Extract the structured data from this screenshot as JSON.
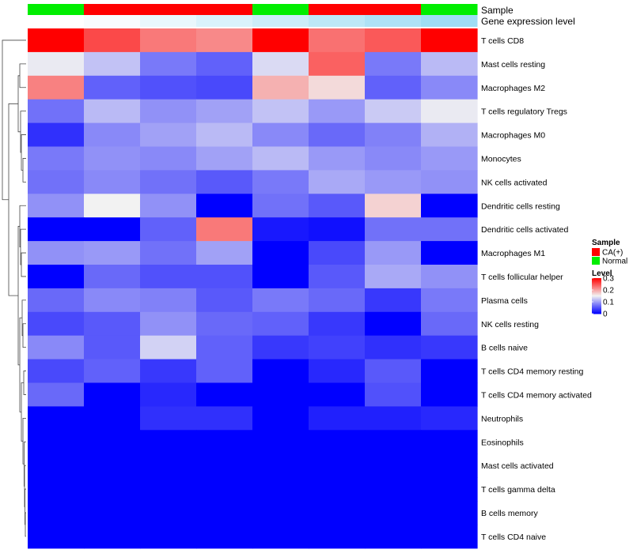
{
  "chart_data": {
    "type": "heatmap",
    "title": "",
    "annotation_tracks": [
      "Sample",
      "Gene expression level"
    ],
    "rows": [
      "T cells CD8",
      "Mast cells resting",
      "Macrophages M2",
      "T cells regulatory  Tregs",
      "Macrophages M0",
      "Monocytes",
      "NK cells activated",
      "Dendritic cells resting",
      "Dendritic cells activated",
      "Macrophages M1",
      "T cells follicular helper",
      "Plasma cells",
      "NK cells resting",
      "B cells naive",
      "T cells CD4 memory resting",
      "T cells CD4 memory activated",
      "Neutrophils",
      "Eosinophils",
      "Mast cells activated",
      "T cells gamma delta",
      "B cells memory",
      "T cells CD4 naive"
    ],
    "sample_groups": [
      "Normal",
      "CA(+)",
      "CA(+)",
      "CA(+)",
      "Normal",
      "CA(+)",
      "CA(+)",
      "Normal"
    ],
    "gene_expression_level": [
      0.0,
      0.05,
      0.15,
      0.25,
      0.35,
      0.45,
      0.55,
      0.65
    ],
    "values": [
      [
        0.3,
        0.255,
        0.225,
        0.215,
        0.3,
        0.23,
        0.245,
        0.3
      ],
      [
        0.145,
        0.12,
        0.075,
        0.06,
        0.135,
        0.24,
        0.075,
        0.115
      ],
      [
        0.22,
        0.06,
        0.05,
        0.045,
        0.19,
        0.165,
        0.06,
        0.085
      ],
      [
        0.07,
        0.115,
        0.09,
        0.1,
        0.12,
        0.095,
        0.125,
        0.145
      ],
      [
        0.03,
        0.085,
        0.1,
        0.115,
        0.085,
        0.065,
        0.08,
        0.11
      ],
      [
        0.075,
        0.09,
        0.085,
        0.1,
        0.115,
        0.095,
        0.085,
        0.095
      ],
      [
        0.07,
        0.085,
        0.07,
        0.055,
        0.075,
        0.105,
        0.095,
        0.09
      ],
      [
        0.09,
        0.15,
        0.09,
        0.0,
        0.07,
        0.055,
        0.17,
        0.0
      ],
      [
        0.0,
        0.0,
        0.06,
        0.225,
        0.015,
        0.01,
        0.07,
        0.07
      ],
      [
        0.09,
        0.095,
        0.07,
        0.1,
        0.0,
        0.045,
        0.095,
        0.0
      ],
      [
        0.0,
        0.065,
        0.05,
        0.05,
        0.0,
        0.055,
        0.105,
        0.09
      ],
      [
        0.065,
        0.085,
        0.08,
        0.055,
        0.075,
        0.065,
        0.035,
        0.075
      ],
      [
        0.045,
        0.055,
        0.09,
        0.065,
        0.06,
        0.035,
        0.0,
        0.065
      ],
      [
        0.085,
        0.055,
        0.13,
        0.06,
        0.035,
        0.04,
        0.03,
        0.035
      ],
      [
        0.045,
        0.06,
        0.035,
        0.06,
        0.0,
        0.025,
        0.055,
        0.0
      ],
      [
        0.065,
        0.0,
        0.025,
        0.0,
        0.0,
        0.0,
        0.05,
        0.0
      ],
      [
        0.0,
        0.0,
        0.03,
        0.03,
        0.0,
        0.02,
        0.02,
        0.025
      ],
      [
        0.0,
        0.0,
        0.0,
        0.0,
        0.0,
        0.0,
        0.0,
        0.0
      ],
      [
        0.0,
        0.0,
        0.0,
        0.0,
        0.0,
        0.0,
        0.0,
        0.0
      ],
      [
        0.0,
        0.0,
        0.0,
        0.0,
        0.0,
        0.0,
        0.0,
        0.0
      ],
      [
        0.0,
        0.0,
        0.0,
        0.0,
        0.0,
        0.0,
        0.0,
        0.0
      ],
      [
        0.0,
        0.0,
        0.0,
        0.0,
        0.0,
        0.0,
        0.0,
        0.0
      ]
    ],
    "color_scale": {
      "low": "#0000ff",
      "mid": "#f2f2f2",
      "high": "#ff0000",
      "min": 0,
      "mid_value": 0.15,
      "max": 0.3
    },
    "legend": {
      "sample_title": "Sample",
      "sample_entries": [
        {
          "label": "CA(+)",
          "color": "#ff0000"
        },
        {
          "label": "Normal",
          "color": "#00ee00"
        }
      ],
      "level_title": "Level",
      "level_ticks": [
        "0.3",
        "0.2",
        "0.1",
        "0"
      ],
      "placement": "right"
    },
    "dendrogram": "rows"
  }
}
